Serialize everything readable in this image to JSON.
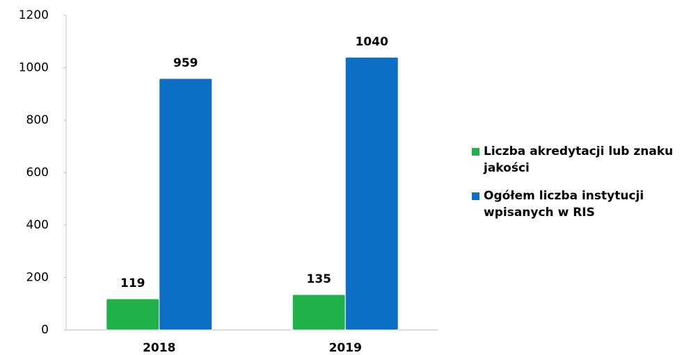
{
  "chart_data": {
    "type": "bar",
    "categories": [
      "2018",
      "2019"
    ],
    "series": [
      {
        "name": "Liczba akredytacji lub znaku jakości",
        "color": "#1fb24a",
        "values": [
          119,
          135
        ]
      },
      {
        "name": "Ogółem liczba instytucji wpisanych w RIS",
        "color": "#0b6fc6",
        "values": [
          959,
          1040
        ]
      }
    ],
    "ylim": [
      0,
      1200
    ],
    "yticks": [
      0,
      200,
      400,
      600,
      800,
      1000,
      1200
    ],
    "grid": false,
    "legend": "right"
  }
}
